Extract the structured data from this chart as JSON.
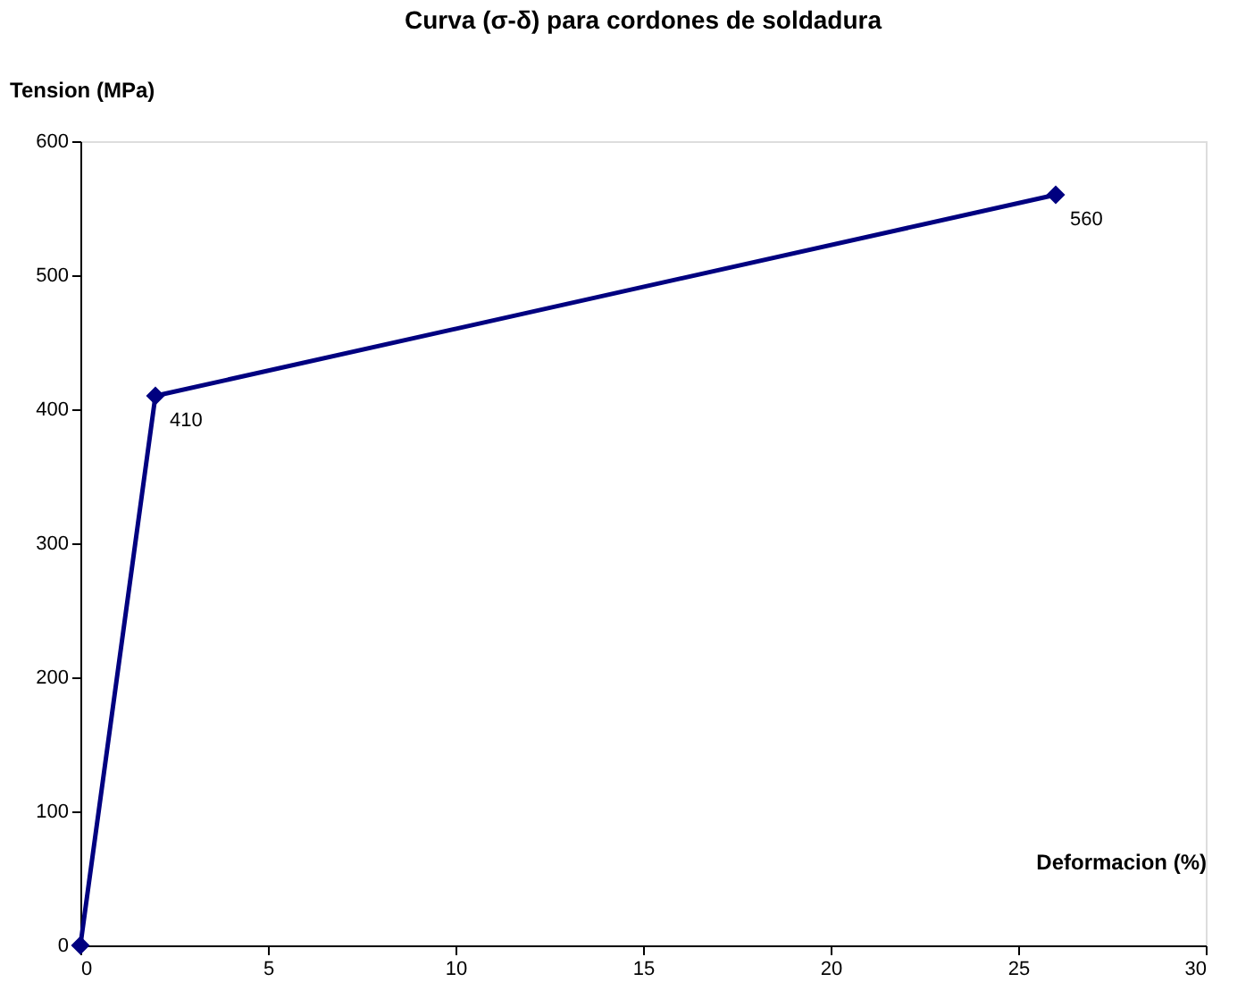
{
  "chart_data": {
    "type": "line",
    "title": "Curva (σ-δ) para cordones de soldadura",
    "xlabel": "Deformacion (%)",
    "ylabel": "Tension (MPa)",
    "x": [
      0,
      2,
      26
    ],
    "series": [
      {
        "color": "#000080",
        "values": [
          0,
          410,
          560
        ],
        "value_labels": [
          null,
          "410",
          "560"
        ]
      }
    ],
    "xlim": [
      0,
      30
    ],
    "xticks": [
      0,
      5,
      10,
      15,
      20,
      25,
      30
    ],
    "ylim": [
      0,
      600
    ],
    "yticks": [
      0,
      100,
      200,
      300,
      400,
      500,
      600
    ],
    "grid": false,
    "marker": "diamond",
    "line_style": "solid"
  }
}
